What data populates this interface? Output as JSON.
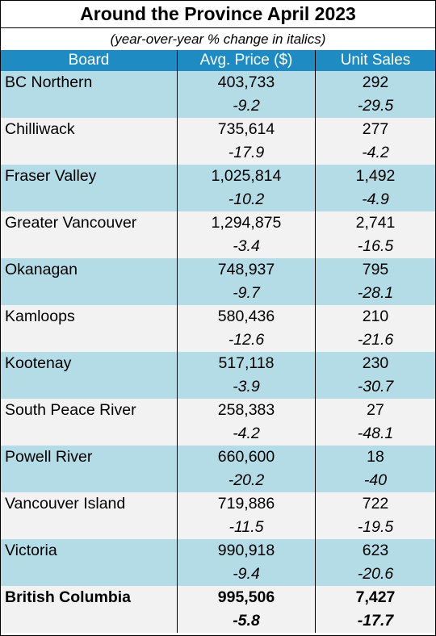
{
  "title": "Around the Province April 2023",
  "subtitle": "(year-over-year % change in italics)",
  "columns": [
    "Board",
    "Avg. Price ($)",
    "Unit Sales"
  ],
  "rows": [
    {
      "board": "BC Northern",
      "price": "403,733",
      "price_change": "-9.2",
      "sales": "292",
      "sales_change": "-29.5"
    },
    {
      "board": "Chilliwack",
      "price": "735,614",
      "price_change": "-17.9",
      "sales": "277",
      "sales_change": "-4.2"
    },
    {
      "board": "Fraser Valley",
      "price": "1,025,814",
      "price_change": "-10.2",
      "sales": "1,492",
      "sales_change": "-4.9"
    },
    {
      "board": "Greater Vancouver",
      "price": "1,294,875",
      "price_change": "-3.4",
      "sales": "2,741",
      "sales_change": "-16.5"
    },
    {
      "board": "Okanagan",
      "price": "748,937",
      "price_change": "-9.7",
      "sales": "795",
      "sales_change": "-28.1"
    },
    {
      "board": "Kamloops",
      "price": "580,436",
      "price_change": "-12.6",
      "sales": "210",
      "sales_change": "-21.6"
    },
    {
      "board": "Kootenay",
      "price": "517,118",
      "price_change": "-3.9",
      "sales": "230",
      "sales_change": "-30.7"
    },
    {
      "board": "South Peace River",
      "price": "258,383",
      "price_change": "-4.2",
      "sales": "27",
      "sales_change": "-48.1"
    },
    {
      "board": "Powell River",
      "price": "660,600",
      "price_change": "-20.2",
      "sales": "18",
      "sales_change": "-40"
    },
    {
      "board": "Vancouver Island",
      "price": "719,886",
      "price_change": "-11.5",
      "sales": "722",
      "sales_change": "-19.5"
    },
    {
      "board": "Victoria",
      "price": "990,918",
      "price_change": "-9.4",
      "sales": "623",
      "sales_change": "-20.6"
    }
  ],
  "total": {
    "board": "British Columbia",
    "price": "995,506",
    "price_change": "-5.8",
    "sales": "7,427",
    "sales_change": "-17.7"
  },
  "colors": {
    "header": "#1e8bc3",
    "band_blue": "#b4dce6",
    "band_grey": "#f2f2f2"
  }
}
